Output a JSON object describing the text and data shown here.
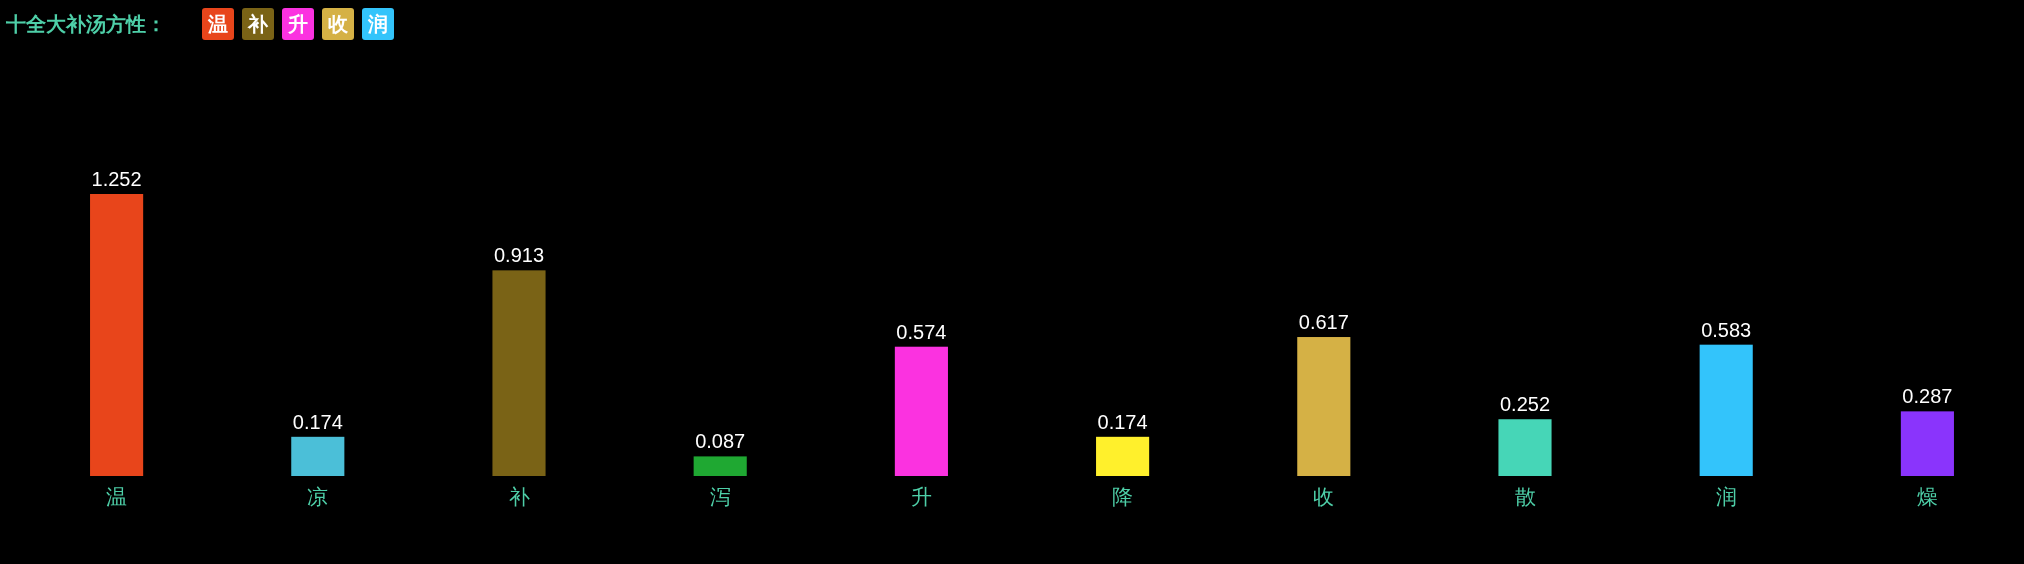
{
  "chart_data": {
    "type": "bar",
    "title": "十全大补汤方性：",
    "annotations": [
      "温",
      "补",
      "升",
      "收",
      "润"
    ],
    "categories": [
      "温",
      "凉",
      "补",
      "泻",
      "升",
      "降",
      "收",
      "散",
      "润",
      "燥"
    ],
    "values": [
      1.252,
      0.174,
      0.913,
      0.087,
      0.574,
      0.174,
      0.617,
      0.252,
      0.583,
      0.287
    ],
    "colors": [
      "#e8451b",
      "#4bbfd8",
      "#7a6316",
      "#1fa832",
      "#fb32e0",
      "#fff02c",
      "#d5b145",
      "#46d6b7",
      "#33c4fb",
      "#8a34fc"
    ],
    "data_labels": true
  }
}
